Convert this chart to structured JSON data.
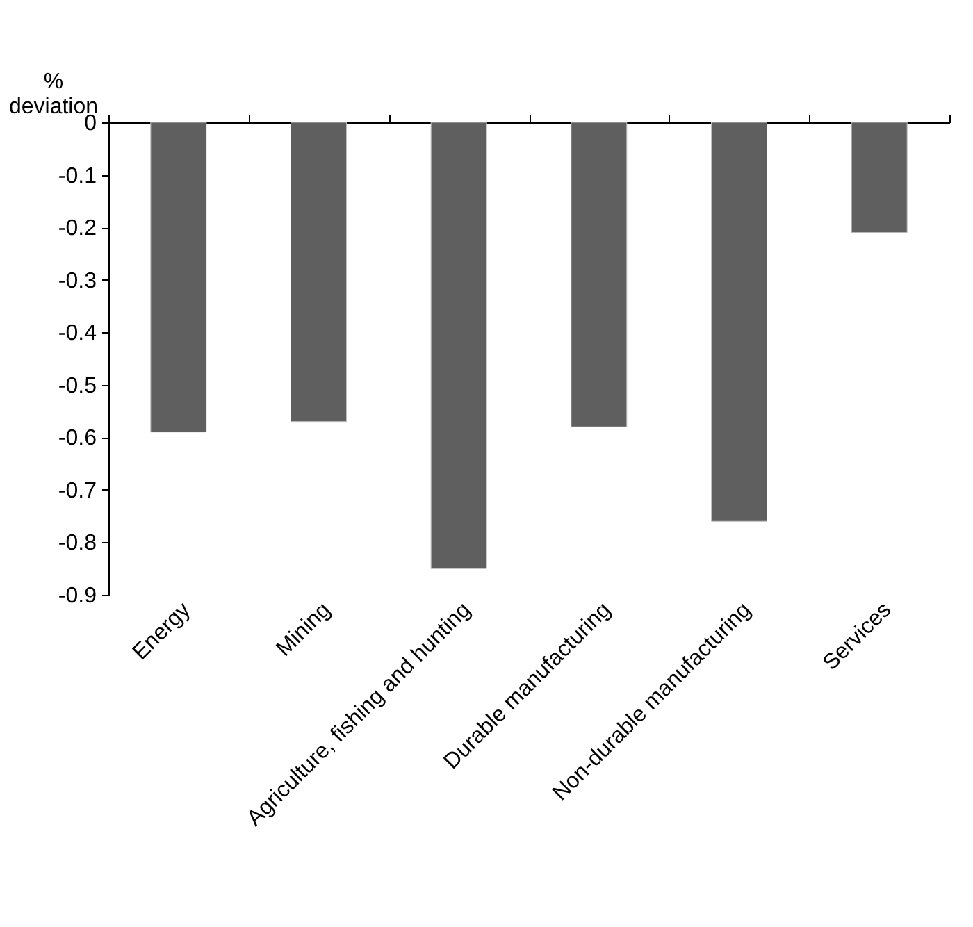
{
  "chart_data": {
    "type": "bar",
    "ylabel": "% deviation",
    "categories": [
      "Energy",
      "Mining",
      "Agriculture, fishing and hunting",
      "Durable manufacturing",
      "Non-durable manufacturing",
      "Services"
    ],
    "values": [
      -0.59,
      -0.57,
      -0.85,
      -0.58,
      -0.76,
      -0.21
    ],
    "color": "#5f5f5f",
    "ylim": [
      -0.9,
      0
    ],
    "yticks": [
      0,
      -0.1,
      -0.2,
      -0.3,
      -0.4,
      -0.5,
      -0.6,
      -0.7,
      -0.8,
      -0.9
    ],
    "grid": false
  }
}
